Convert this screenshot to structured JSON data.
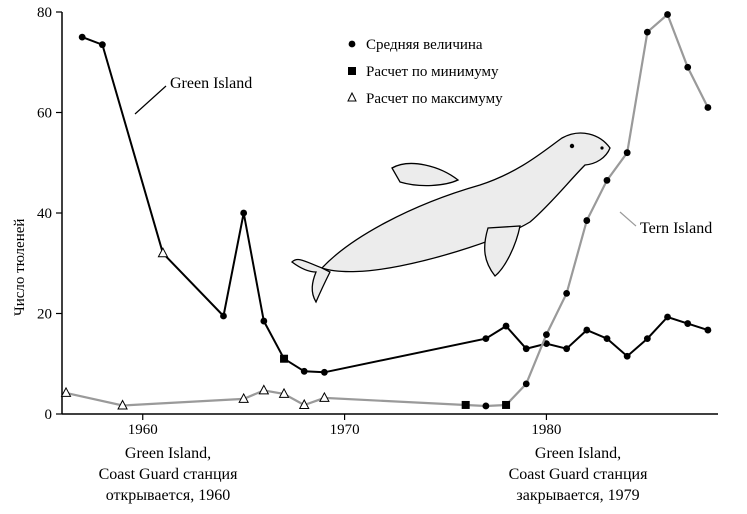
{
  "chart_data": {
    "type": "line",
    "ylabel": "Число тюленей",
    "xlim": [
      1956,
      1988.5
    ],
    "ylim": [
      0,
      80
    ],
    "x_ticks": [
      1960,
      1970,
      1980
    ],
    "y_ticks": [
      0,
      20,
      40,
      60,
      80
    ],
    "legend": {
      "placement": "top-center",
      "entries": [
        {
          "marker": "circle",
          "label": "Средняя величина"
        },
        {
          "marker": "square",
          "label": "Расчет по минимуму"
        },
        {
          "marker": "triangle",
          "label": "Расчет по максимуму"
        }
      ]
    },
    "series": [
      {
        "name": "Green Island",
        "color": "#000000",
        "points": [
          {
            "x": 1957,
            "y": 75,
            "m": "circle"
          },
          {
            "x": 1958,
            "y": 73.5,
            "m": "circle"
          },
          {
            "x": 1961,
            "y": 32,
            "m": "triangle"
          },
          {
            "x": 1964,
            "y": 19.5,
            "m": "circle"
          },
          {
            "x": 1965,
            "y": 40,
            "m": "circle"
          },
          {
            "x": 1966,
            "y": 18.5,
            "m": "circle"
          },
          {
            "x": 1967,
            "y": 11,
            "m": "square"
          },
          {
            "x": 1968,
            "y": 8.5,
            "m": "circle"
          },
          {
            "x": 1969,
            "y": 8.3,
            "m": "circle"
          },
          {
            "x": 1977,
            "y": 15,
            "m": "circle"
          },
          {
            "x": 1978,
            "y": 17.5,
            "m": "circle"
          },
          {
            "x": 1979,
            "y": 13,
            "m": "circle"
          },
          {
            "x": 1980,
            "y": 14,
            "m": "circle"
          },
          {
            "x": 1981,
            "y": 13,
            "m": "circle"
          },
          {
            "x": 1982,
            "y": 16.7,
            "m": "circle"
          },
          {
            "x": 1983,
            "y": 15,
            "m": "circle"
          },
          {
            "x": 1984,
            "y": 11.5,
            "m": "circle"
          },
          {
            "x": 1985,
            "y": 15,
            "m": "circle"
          },
          {
            "x": 1986,
            "y": 19.3,
            "m": "circle"
          },
          {
            "x": 1987,
            "y": 18,
            "m": "circle"
          },
          {
            "x": 1988,
            "y": 16.7,
            "m": "circle"
          }
        ]
      },
      {
        "name": "Tern Island",
        "color": "#9a9a9a",
        "points": [
          {
            "x": 1956.2,
            "y": 4.2,
            "m": "triangle"
          },
          {
            "x": 1959,
            "y": 1.7,
            "m": "triangle"
          },
          {
            "x": 1965,
            "y": 3,
            "m": "triangle"
          },
          {
            "x": 1966,
            "y": 4.7,
            "m": "triangle"
          },
          {
            "x": 1967,
            "y": 4,
            "m": "triangle"
          },
          {
            "x": 1968,
            "y": 1.8,
            "m": "triangle"
          },
          {
            "x": 1969,
            "y": 3.2,
            "m": "triangle"
          },
          {
            "x": 1976,
            "y": 1.8,
            "m": "square"
          },
          {
            "x": 1977,
            "y": 1.6,
            "m": "circle"
          },
          {
            "x": 1978,
            "y": 1.8,
            "m": "square"
          },
          {
            "x": 1979,
            "y": 6,
            "m": "circle"
          },
          {
            "x": 1980,
            "y": 15.8,
            "m": "circle"
          },
          {
            "x": 1981,
            "y": 24,
            "m": "circle"
          },
          {
            "x": 1982,
            "y": 38.5,
            "m": "circle"
          },
          {
            "x": 1983,
            "y": 46.5,
            "m": "circle"
          },
          {
            "x": 1984,
            "y": 52,
            "m": "circle"
          },
          {
            "x": 1985,
            "y": 76,
            "m": "circle"
          },
          {
            "x": 1986,
            "y": 79.5,
            "m": "circle"
          },
          {
            "x": 1987,
            "y": 69,
            "m": "circle"
          },
          {
            "x": 1988,
            "y": 61,
            "m": "circle"
          }
        ]
      }
    ],
    "annotations": {
      "open_1": "Green Island,",
      "open_2": "Coast Guard станция",
      "open_3": "открывается, 1960",
      "close_1": "Green Island,",
      "close_2": "Coast Guard станция",
      "close_3": "закрывается, 1979"
    }
  }
}
